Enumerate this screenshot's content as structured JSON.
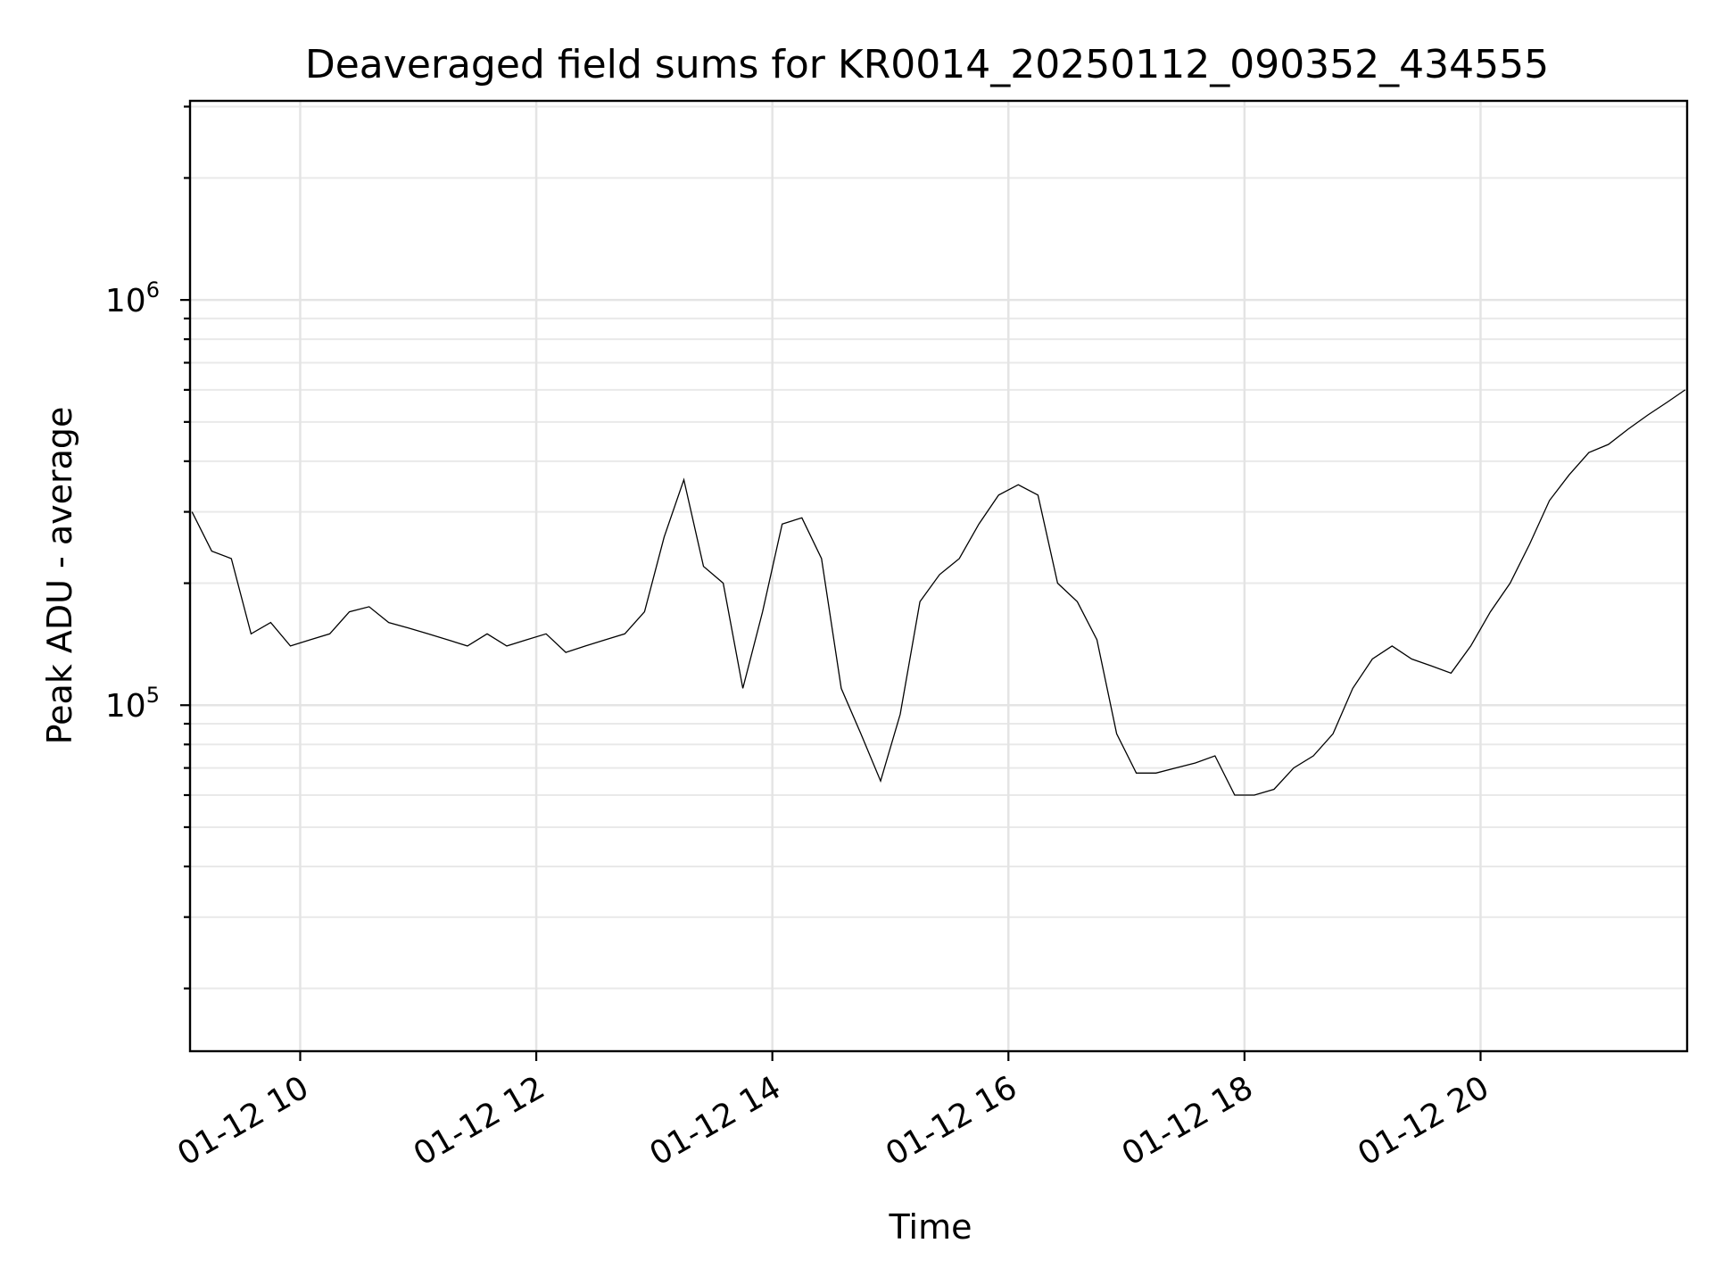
{
  "chart_data": {
    "type": "line",
    "title": "Deaveraged field sums for KR0014_20250112_090352_434555",
    "xlabel": "Time",
    "ylabel": "Peak ADU - average",
    "x_scale": "time",
    "y_scale": "log",
    "xlim": [
      "2025-01-12 09:04",
      "2025-01-12 21:45"
    ],
    "ylim": [
      14000,
      3100000
    ],
    "x_ticks": [
      {
        "value": "2025-01-12 10:00",
        "label": "01-12 10"
      },
      {
        "value": "2025-01-12 12:00",
        "label": "01-12 12"
      },
      {
        "value": "2025-01-12 14:00",
        "label": "01-12 14"
      },
      {
        "value": "2025-01-12 16:00",
        "label": "01-12 16"
      },
      {
        "value": "2025-01-12 18:00",
        "label": "01-12 18"
      },
      {
        "value": "2025-01-12 20:00",
        "label": "01-12 20"
      }
    ],
    "y_ticks": [
      {
        "value": 100000,
        "base": "10",
        "exponent": "5"
      },
      {
        "value": 1000000,
        "base": "10",
        "exponent": "6"
      }
    ],
    "grid": true,
    "series": [
      {
        "color": "#000000",
        "x": [
          "2025-01-12 09:05",
          "2025-01-12 09:15",
          "2025-01-12 09:25",
          "2025-01-12 09:35",
          "2025-01-12 09:45",
          "2025-01-12 09:55",
          "2025-01-12 10:05",
          "2025-01-12 10:15",
          "2025-01-12 10:25",
          "2025-01-12 10:35",
          "2025-01-12 10:45",
          "2025-01-12 10:55",
          "2025-01-12 11:05",
          "2025-01-12 11:15",
          "2025-01-12 11:25",
          "2025-01-12 11:35",
          "2025-01-12 11:45",
          "2025-01-12 11:55",
          "2025-01-12 12:05",
          "2025-01-12 12:15",
          "2025-01-12 12:25",
          "2025-01-12 12:35",
          "2025-01-12 12:45",
          "2025-01-12 12:55",
          "2025-01-12 13:05",
          "2025-01-12 13:15",
          "2025-01-12 13:25",
          "2025-01-12 13:35",
          "2025-01-12 13:45",
          "2025-01-12 13:55",
          "2025-01-12 14:05",
          "2025-01-12 14:15",
          "2025-01-12 14:25",
          "2025-01-12 14:35",
          "2025-01-12 14:45",
          "2025-01-12 14:55",
          "2025-01-12 15:05",
          "2025-01-12 15:15",
          "2025-01-12 15:25",
          "2025-01-12 15:35",
          "2025-01-12 15:45",
          "2025-01-12 15:55",
          "2025-01-12 16:05",
          "2025-01-12 16:15",
          "2025-01-12 16:25",
          "2025-01-12 16:35",
          "2025-01-12 16:45",
          "2025-01-12 16:55",
          "2025-01-12 17:05",
          "2025-01-12 17:15",
          "2025-01-12 17:25",
          "2025-01-12 17:35",
          "2025-01-12 17:45",
          "2025-01-12 17:55",
          "2025-01-12 18:05",
          "2025-01-12 18:15",
          "2025-01-12 18:25",
          "2025-01-12 18:35",
          "2025-01-12 18:45",
          "2025-01-12 18:55",
          "2025-01-12 19:05",
          "2025-01-12 19:15",
          "2025-01-12 19:25",
          "2025-01-12 19:35",
          "2025-01-12 19:45",
          "2025-01-12 19:55",
          "2025-01-12 20:05",
          "2025-01-12 20:15",
          "2025-01-12 20:25",
          "2025-01-12 20:35",
          "2025-01-12 20:45",
          "2025-01-12 20:55",
          "2025-01-12 21:05",
          "2025-01-12 21:15",
          "2025-01-12 21:25",
          "2025-01-12 21:35",
          "2025-01-12 21:44"
        ],
        "values": [
          300000,
          240000,
          230000,
          150000,
          160000,
          140000,
          145000,
          150000,
          170000,
          175000,
          160000,
          155000,
          150000,
          145000,
          140000,
          150000,
          140000,
          145000,
          150000,
          135000,
          140000,
          145000,
          150000,
          170000,
          260000,
          360000,
          220000,
          200000,
          110000,
          170000,
          280000,
          290000,
          230000,
          110000,
          85000,
          65000,
          95000,
          180000,
          210000,
          230000,
          280000,
          330000,
          350000,
          330000,
          200000,
          180000,
          145000,
          85000,
          68000,
          68000,
          70000,
          72000,
          75000,
          60000,
          60000,
          62000,
          70000,
          75000,
          85000,
          110000,
          130000,
          140000,
          130000,
          125000,
          120000,
          140000,
          170000,
          200000,
          250000,
          320000,
          370000,
          420000,
          440000,
          480000,
          520000,
          560000,
          600000
        ]
      }
    ]
  }
}
